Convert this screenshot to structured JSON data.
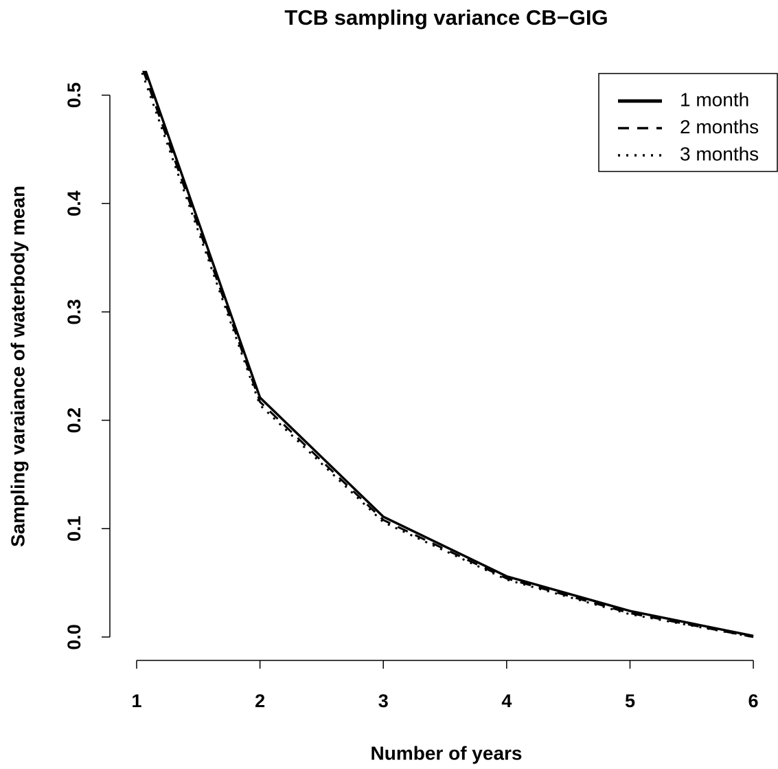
{
  "chart_data": {
    "type": "line",
    "title": "TCB sampling variance CB−GIG",
    "x_label": "Number of years",
    "y_label": "Sampling varaiance of waterbody mean",
    "x": [
      1,
      2,
      3,
      4,
      5,
      6
    ],
    "series": [
      {
        "name": "1 month",
        "color": "#000000",
        "dash": "solid",
        "values": [
          0.546,
          0.221,
          0.111,
          0.056,
          0.024,
          0.001
        ]
      },
      {
        "name": "2 months",
        "color": "#000000",
        "dash": "dashed",
        "values": [
          0.54,
          0.217,
          0.108,
          0.054,
          0.022,
          0.0
        ]
      },
      {
        "name": "3 months",
        "color": "#000000",
        "dash": "dotted",
        "values": [
          0.535,
          0.214,
          0.106,
          0.053,
          0.021,
          0.0
        ]
      }
    ],
    "xlim": [
      0.783,
      6.2
    ],
    "ylim": [
      -0.0216,
      0.5225
    ],
    "xticks": [
      1,
      2,
      3,
      4,
      5,
      6
    ],
    "yticks": [
      {
        "value": 0,
        "label": "0.0"
      },
      0.1,
      0.2,
      0.3,
      0.4,
      0.5
    ],
    "legend": "top-right",
    "grid": false
  }
}
